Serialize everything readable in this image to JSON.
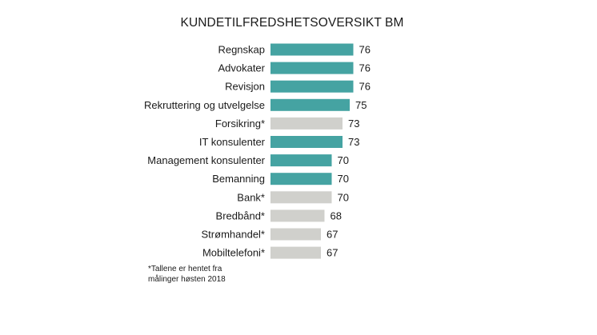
{
  "chart_data": {
    "type": "bar",
    "orientation": "horizontal",
    "title": "KUNDETILFREDSHETSOVERSIKT BM",
    "categories": [
      "Regnskap",
      "Advokater",
      "Revisjon",
      "Rekruttering og utvelgelse",
      "Forsikring*",
      "IT konsulenter",
      "Management konsulenter",
      "Bemanning",
      "Bank*",
      "Bredbånd*",
      "Strømhandel*",
      "Mobiltelefoni*"
    ],
    "values": [
      76,
      76,
      76,
      75,
      73,
      73,
      70,
      70,
      70,
      68,
      67,
      67
    ],
    "highlighted": [
      true,
      true,
      true,
      true,
      false,
      true,
      true,
      true,
      false,
      false,
      false,
      false
    ],
    "colors": {
      "highlight": "#45a3a2",
      "other": "#d0d0cc"
    },
    "xlim": [
      53,
      80
    ],
    "grid": false,
    "legend": "none"
  },
  "footnote": "*Tallene er hentet fra målinger høsten 2018"
}
